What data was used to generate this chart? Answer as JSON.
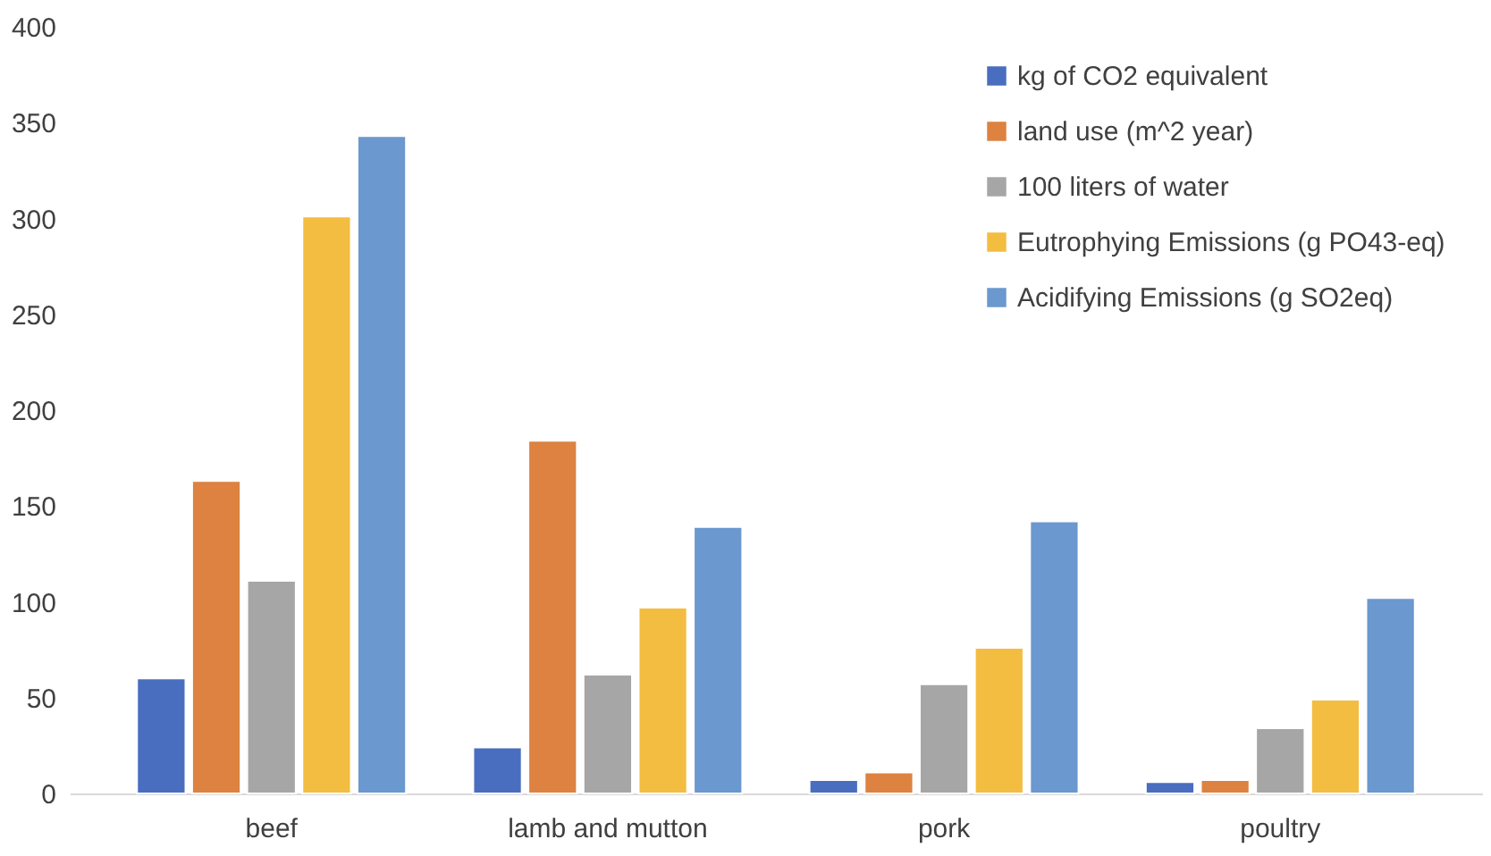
{
  "chart_data": {
    "type": "bar",
    "categories": [
      "beef",
      "lamb and mutton",
      "pork",
      "poultry"
    ],
    "series": [
      {
        "name": "kg of CO2 equivalent",
        "color": "#4a6ebf",
        "values": [
          60,
          24,
          7,
          6
        ]
      },
      {
        "name": "land use (m^2 year)",
        "color": "#dd8240",
        "values": [
          163,
          184,
          11,
          7
        ]
      },
      {
        "name": "100 liters of water",
        "color": "#a6a6a6",
        "values": [
          111,
          62,
          57,
          34
        ]
      },
      {
        "name": "Eutrophying Emissions (g PO43-eq)",
        "color": "#f3bd41",
        "values": [
          301,
          97,
          76,
          49
        ]
      },
      {
        "name": "Acidifying Emissions (g SO2eq)",
        "color": "#6a98cf",
        "values": [
          343,
          139,
          142,
          102
        ]
      }
    ],
    "ylim": [
      0,
      400
    ],
    "yticks": [
      0,
      50,
      100,
      150,
      200,
      250,
      300,
      350,
      400
    ],
    "grid": false,
    "legend": "top right"
  }
}
